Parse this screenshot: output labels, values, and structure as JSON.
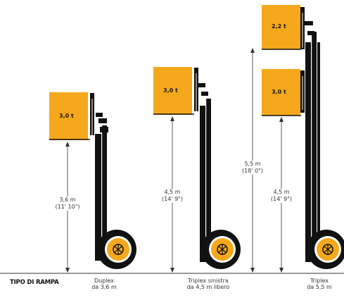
{
  "heading": "TIPO DI RAMPA",
  "colors": {
    "load": "#F5A81C",
    "mast": "#111111",
    "wheel": "#111111",
    "hub": "#F5A81C",
    "line": "#333333"
  },
  "masts": [
    {
      "type_line1": "Duplex",
      "type_line2": "da 3,6 m",
      "loads": [
        {
          "capacity": "3,0 t"
        }
      ],
      "dimensions": [
        {
          "meters": "3,6 m",
          "feet": "(11' 10\")"
        }
      ]
    },
    {
      "type_line1": "Triplex sinistra",
      "type_line2": "da 4,5 m libero",
      "loads": [
        {
          "capacity": "3,0 t"
        }
      ],
      "dimensions": [
        {
          "meters": "4,5 m",
          "feet": "(14' 9\")"
        }
      ]
    },
    {
      "type_line1": "Triplex",
      "type_line2": "da 5,5 m",
      "loads": [
        {
          "capacity": "2,2 t"
        },
        {
          "capacity": "3,0 t"
        }
      ],
      "dimensions": [
        {
          "meters": "5,5 m",
          "feet": "(18' 0\")"
        },
        {
          "meters": "4,5 m",
          "feet": "(14' 9\")"
        }
      ]
    }
  ]
}
